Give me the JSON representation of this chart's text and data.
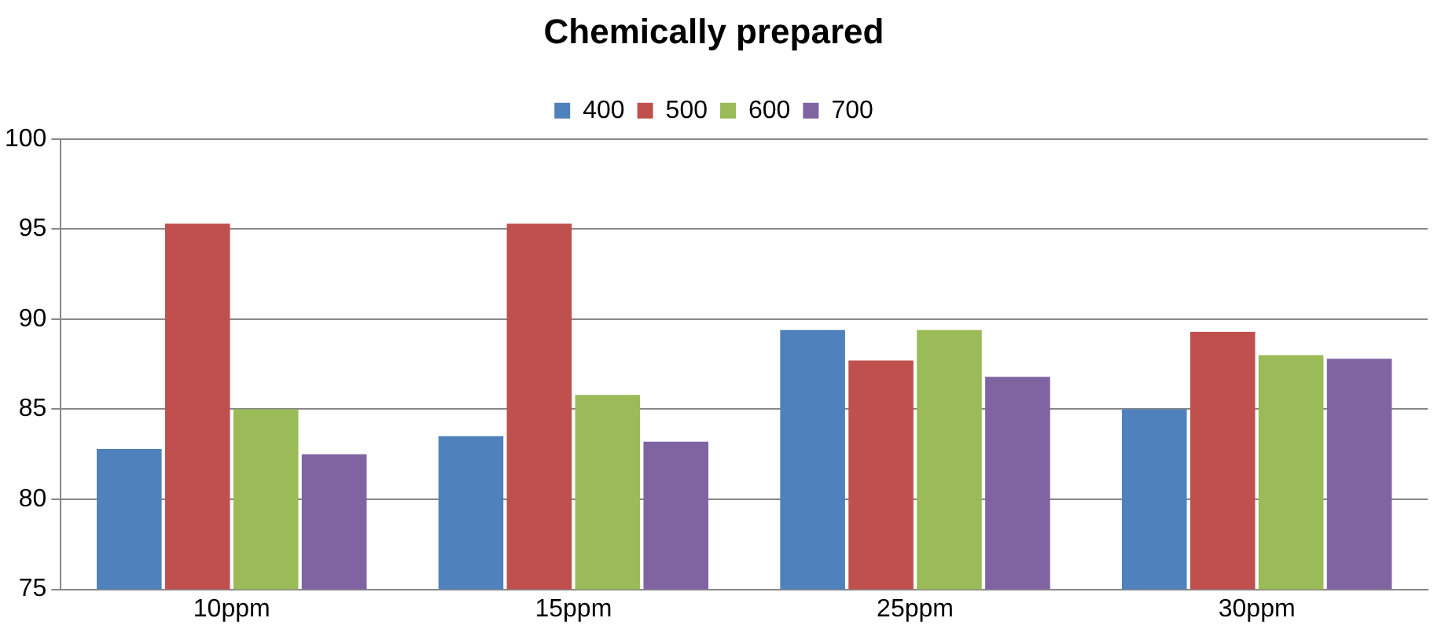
{
  "chart_data": {
    "type": "bar",
    "title": "Chemically prepared",
    "categories": [
      "10ppm",
      "15ppm",
      "25ppm",
      "30ppm"
    ],
    "series": [
      {
        "name": "400",
        "color": "#4f81bd",
        "values": [
          82.8,
          83.5,
          89.4,
          85.0
        ]
      },
      {
        "name": "500",
        "color": "#c0504d",
        "values": [
          95.3,
          95.3,
          87.7,
          89.3
        ]
      },
      {
        "name": "600",
        "color": "#9bbb59",
        "values": [
          85.0,
          85.8,
          89.4,
          88.0
        ]
      },
      {
        "name": "700",
        "color": "#8064a2",
        "values": [
          82.5,
          83.2,
          86.8,
          87.8
        ]
      }
    ],
    "ylim": [
      75,
      100
    ],
    "yticks": [
      75,
      80,
      85,
      90,
      95,
      100
    ],
    "grid": "y",
    "legend": "top"
  }
}
